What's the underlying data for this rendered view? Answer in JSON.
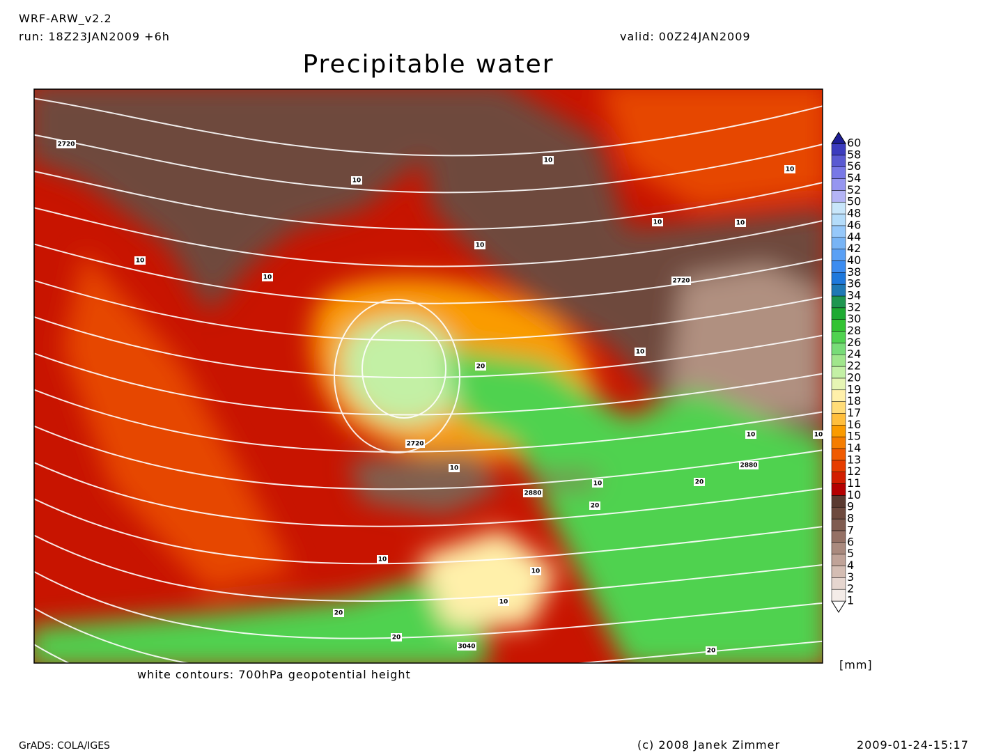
{
  "header": {
    "model": "WRF-ARW_v2.2",
    "run": "run: 18Z23JAN2009 +6h",
    "valid": "valid: 00Z24JAN2009",
    "title": "Precipitable water"
  },
  "colorbar": {
    "levels": [
      1,
      2,
      3,
      4,
      5,
      6,
      7,
      8,
      9,
      10,
      11,
      12,
      13,
      14,
      15,
      16,
      17,
      18,
      19,
      20,
      22,
      24,
      26,
      28,
      30,
      32,
      34,
      36,
      38,
      40,
      42,
      44,
      46,
      48,
      50,
      52,
      54,
      56,
      58,
      60
    ],
    "colors": [
      "#ffffff",
      "#f4ece8",
      "#e6d6cf",
      "#d4bdb3",
      "#c0a398",
      "#aa8a7e",
      "#957165",
      "#805c50",
      "#6e4a3e",
      "#5a3a30",
      "#b40000",
      "#d21e00",
      "#e63c00",
      "#f05a00",
      "#f57d00",
      "#fa9b00",
      "#ffbe3c",
      "#ffdc78",
      "#fff0aa",
      "#e6f5b4",
      "#c3f0a5",
      "#a0e68c",
      "#78dc78",
      "#50d250",
      "#32c332",
      "#1eaa32",
      "#1e9650",
      "#1e78b4",
      "#1e78dc",
      "#3c8cf0",
      "#5aa0f5",
      "#78b4f5",
      "#96c8fa",
      "#b4dcfa",
      "#c8e6fa",
      "#b4b4f5",
      "#9696f0",
      "#7878e6",
      "#5a5ad2",
      "#3c3cbe",
      "#1e1e96"
    ],
    "unit": "[mm]"
  },
  "caption": "white contours: 700hPa geopotential height",
  "contour_labels": [
    "2720",
    "10",
    "10",
    "10",
    "10",
    "10",
    "10",
    "10",
    "10",
    "2720",
    "10",
    "20",
    "2720",
    "10",
    "10",
    "10",
    "2880",
    "10",
    "20",
    "2880",
    "20",
    "10",
    "10",
    "10",
    "20",
    "20",
    "3040",
    "20"
  ],
  "footer": {
    "software": "GrADS: COLA/IGES",
    "copyright": "(c) 2008 Janek Zimmer",
    "timestamp": "2009-01-24-15:17"
  }
}
